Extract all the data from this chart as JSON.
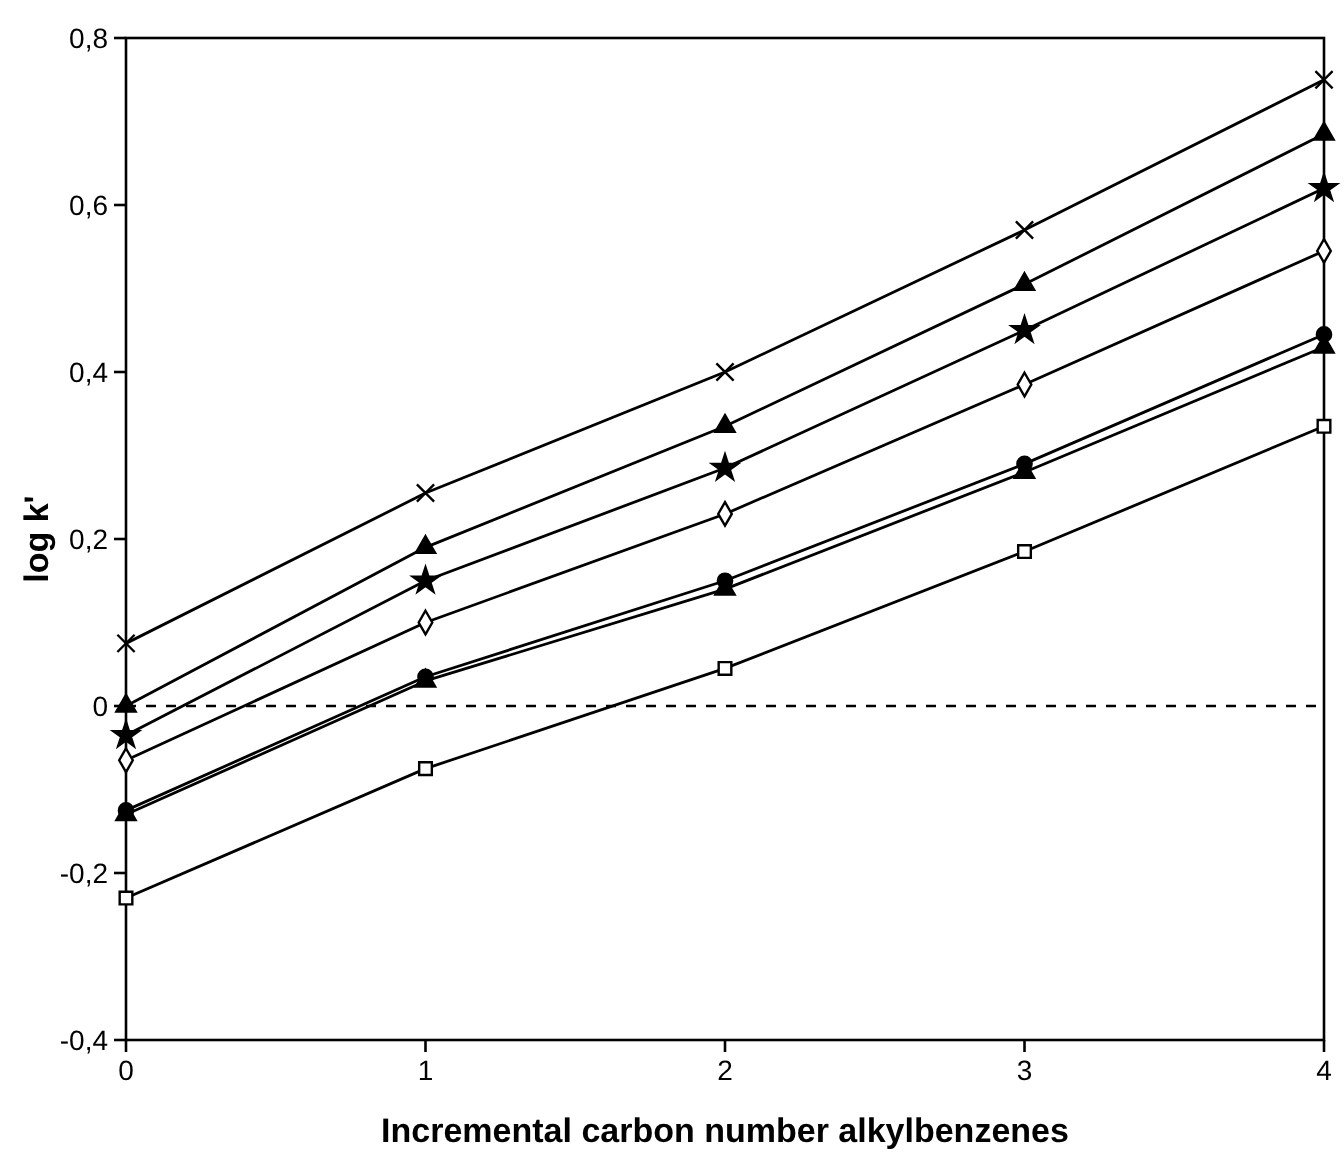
{
  "chart_data": {
    "type": "line",
    "xlabel": "Incremental carbon number alkylbenzenes",
    "ylabel": "log k'",
    "x": [
      0,
      1,
      2,
      3,
      4
    ],
    "xlim": [
      0,
      4
    ],
    "xticks": [
      0,
      1,
      2,
      3,
      4
    ],
    "ylim": [
      -0.4,
      0.8
    ],
    "yticks": [
      {
        "value": -0.4,
        "label": "-0,4"
      },
      {
        "value": -0.2,
        "label": "-0,2"
      },
      {
        "value": 0,
        "label": "0"
      },
      {
        "value": 0.2,
        "label": "0,2"
      },
      {
        "value": 0.4,
        "label": "0,4"
      },
      {
        "value": 0.6,
        "label": "0,6"
      },
      {
        "value": 0.8,
        "label": "0,8"
      }
    ],
    "grid": false,
    "line_style": "solid",
    "series": [
      {
        "color": "#000000",
        "marker": "cross",
        "values": [
          0.075,
          0.255,
          0.4,
          0.57,
          0.75
        ]
      },
      {
        "color": "#000000",
        "marker": "triangle",
        "values": [
          0.0,
          0.19,
          0.335,
          0.505,
          0.685
        ]
      },
      {
        "color": "#000000",
        "marker": "star",
        "values": [
          -0.035,
          0.15,
          0.285,
          0.45,
          0.62
        ]
      },
      {
        "color": "#000000",
        "marker": "diamond",
        "values": [
          -0.065,
          0.1,
          0.23,
          0.385,
          0.545
        ]
      },
      {
        "color": "#000000",
        "marker": "circle",
        "values": [
          -0.125,
          0.035,
          0.15,
          0.29,
          0.445
        ]
      },
      {
        "color": "#000000",
        "marker": "triangle",
        "values": [
          -0.13,
          0.03,
          0.14,
          0.28,
          0.43
        ]
      },
      {
        "color": "#000000",
        "marker": "square",
        "values": [
          -0.23,
          -0.075,
          0.045,
          0.185,
          0.335
        ]
      }
    ],
    "ref_lines": [
      {
        "axis": "y",
        "value": 0,
        "line_style": "dashed",
        "color": "#000000"
      }
    ]
  }
}
